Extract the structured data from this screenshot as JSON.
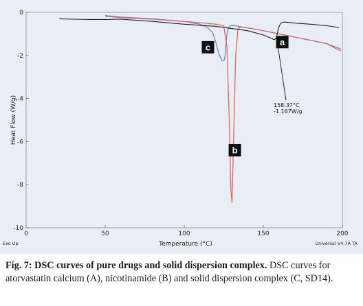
{
  "chart_data": {
    "type": "line",
    "xlabel": "Temperature (°C)",
    "ylabel": "Heat Flow (W/g)",
    "xlim": [
      0,
      200
    ],
    "ylim": [
      -10,
      0
    ],
    "x_ticks": [
      "0",
      "50",
      "100",
      "150",
      "200"
    ],
    "y_ticks": [
      "0",
      "-2",
      "-4",
      "-6",
      "-8",
      "-10"
    ],
    "grid": false,
    "legend": "none",
    "footer_left": "Exo Up",
    "footer_right": "Universal V4.7A TA",
    "series": [
      {
        "name": "a",
        "color": "#1a1a1a",
        "x": [
          21,
          30,
          40,
          50,
          60,
          80,
          100,
          120,
          140,
          150,
          155,
          157,
          158.37,
          159.5,
          161,
          163,
          165,
          170,
          180,
          190,
          198
        ],
        "y": [
          -0.3,
          -0.32,
          -0.33,
          -0.33,
          -0.32,
          -0.42,
          -0.55,
          -0.65,
          -0.85,
          -1.05,
          -1.2,
          -1.27,
          -1.17,
          -0.75,
          -0.5,
          -0.45,
          -0.46,
          -0.5,
          -0.55,
          -0.62,
          -0.7
        ]
      },
      {
        "name": "b",
        "color": "#d96a5a",
        "x": [
          50,
          60,
          80,
          100,
          110,
          120,
          125,
          127,
          128.5,
          129.5,
          130.2,
          131,
          132.5,
          134,
          136,
          140,
          150,
          160,
          170,
          180,
          190,
          199
        ],
        "y": [
          -0.15,
          -0.22,
          -0.3,
          -0.42,
          -0.48,
          -0.55,
          -0.62,
          -1.6,
          -5.0,
          -8.2,
          -8.85,
          -6.5,
          -2.0,
          -0.75,
          -0.68,
          -0.72,
          -0.85,
          -1.0,
          -1.15,
          -1.3,
          -1.45,
          -1.8
        ]
      },
      {
        "name": "c",
        "color": "#7a80c6",
        "x": [
          50,
          60,
          80,
          100,
          110,
          115,
          118,
          120,
          122,
          124,
          125.5,
          127,
          128,
          130,
          140,
          150,
          160,
          170,
          180,
          190,
          199
        ],
        "y": [
          -0.18,
          -0.25,
          -0.32,
          -0.42,
          -0.55,
          -0.72,
          -0.95,
          -1.4,
          -1.95,
          -2.25,
          -2.2,
          -1.0,
          -0.7,
          -0.6,
          -0.72,
          -0.85,
          -1.0,
          -1.15,
          -1.3,
          -1.45,
          -1.7
        ]
      }
    ],
    "annotations": [
      {
        "series": "a",
        "x": 158.37,
        "y": -1.167,
        "line1": "158.37°C",
        "line2": "-1.167W/g"
      }
    ],
    "curve_labels": [
      {
        "text": "a",
        "x": 162,
        "y": -1.38
      },
      {
        "text": "b",
        "x": 132,
        "y": -6.4
      },
      {
        "text": "c",
        "x": 115,
        "y": -1.62
      }
    ]
  },
  "caption": {
    "prefix": "Fig. 7: DSC curves of pure drugs and solid dispersion complex.",
    "body": "DSC curves for atorvastatin calcium (A), nicotinamide (B) and solid dispersion complex (C, SD14)."
  }
}
